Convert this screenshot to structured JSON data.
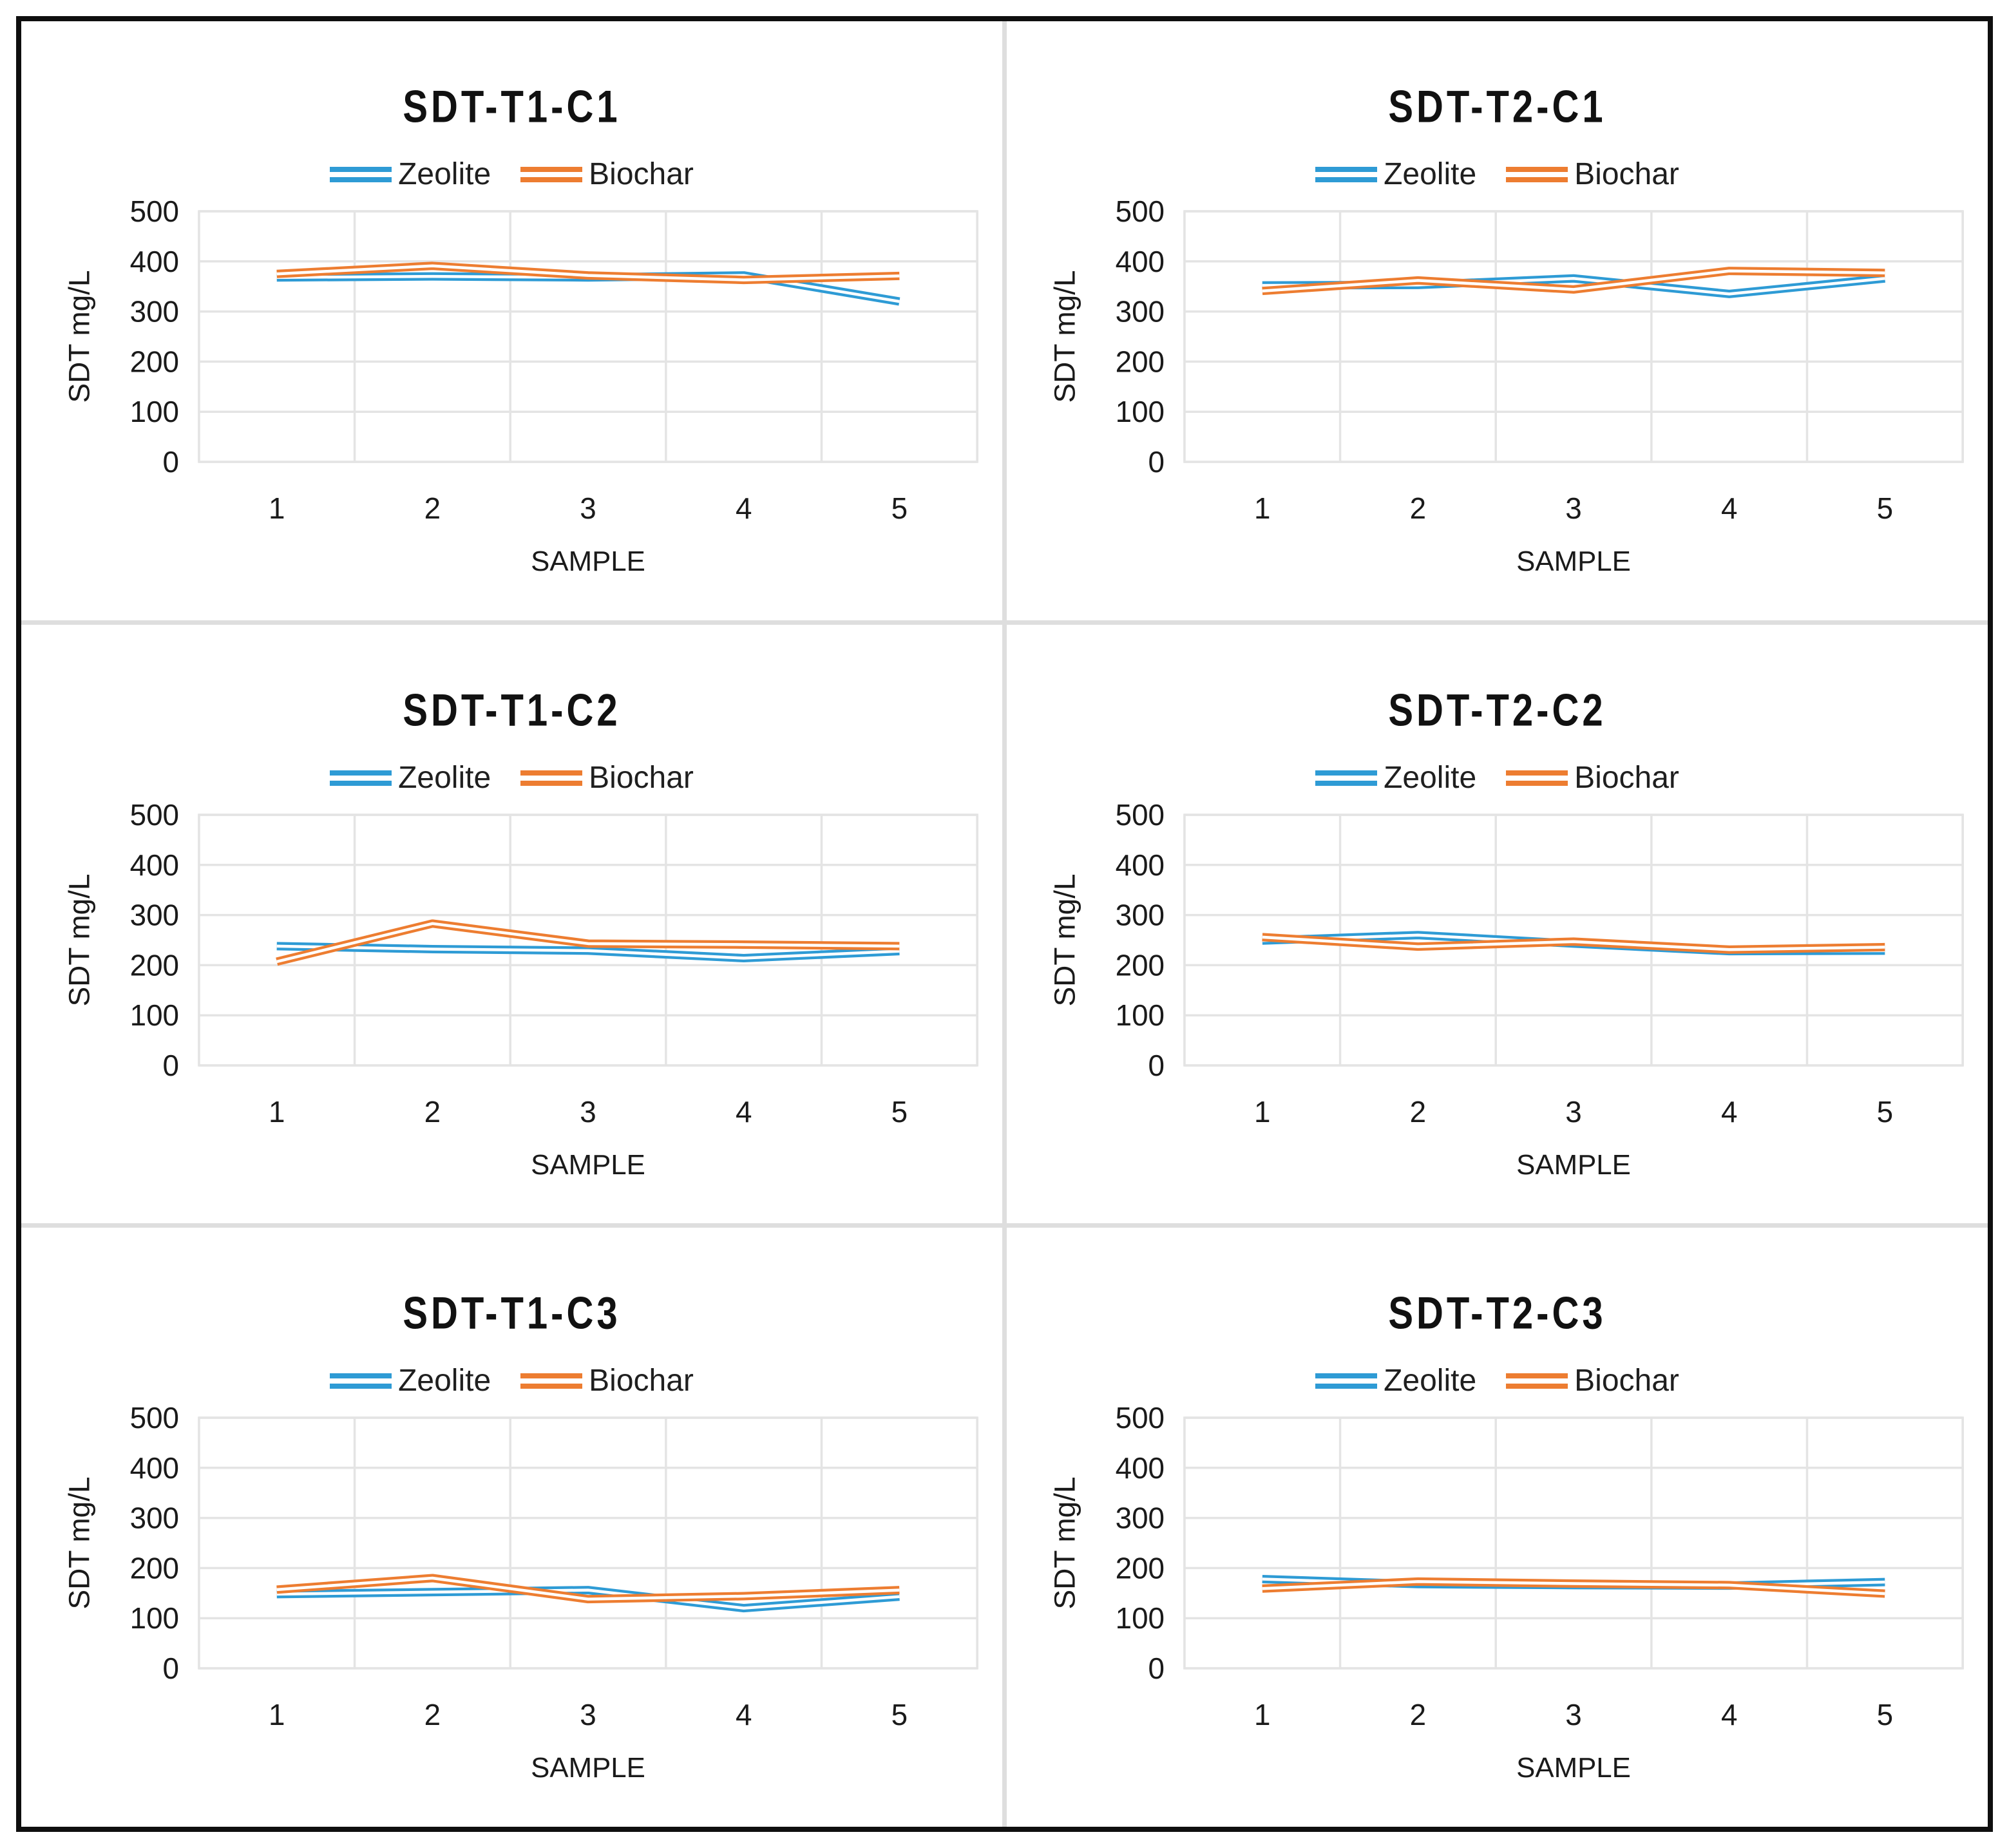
{
  "figure": {
    "xlabel": "SAMPLE",
    "ylabel": "SDT mg/L",
    "legend_entries": [
      "Zeolite",
      "Biochar"
    ]
  },
  "colors": {
    "zeolite_blue": "#2E9BD5",
    "biochar_orange": "#ED7D31",
    "gridline_gray": "#E4E4E4",
    "text_black": "#1A1A1A",
    "outer_border_black": "#0F0F0F",
    "panel_divider_gray": "#DEDEDE"
  },
  "chart_data": [
    {
      "type": "line",
      "title": "SDT-T1-C1",
      "categories": [
        "1",
        "2",
        "3",
        "4",
        "5"
      ],
      "xlabel": "SAMPLE",
      "ylabel": "SDT mg/L",
      "ylim": [
        0,
        500
      ],
      "yticks": [
        0,
        100,
        200,
        300,
        400,
        500
      ],
      "grid": true,
      "legend_position": "top",
      "series": [
        {
          "name": "Zeolite",
          "color": "#2E9BD5",
          "values": [
            368,
            370,
            368,
            372,
            320
          ]
        },
        {
          "name": "Biochar",
          "color": "#ED7D31",
          "values": [
            375,
            391,
            372,
            363,
            371
          ]
        }
      ]
    },
    {
      "type": "line",
      "title": "SDT-T2-C1",
      "categories": [
        "1",
        "2",
        "3",
        "4",
        "5"
      ],
      "xlabel": "SAMPLE",
      "ylabel": "SDT mg/L",
      "ylim": [
        0,
        500
      ],
      "yticks": [
        0,
        100,
        200,
        300,
        400,
        500
      ],
      "grid": true,
      "legend_position": "top",
      "series": [
        {
          "name": "Zeolite",
          "color": "#2E9BD5",
          "values": [
            352,
            353,
            366,
            335,
            366
          ]
        },
        {
          "name": "Biochar",
          "color": "#ED7D31",
          "values": [
            341,
            362,
            344,
            381,
            377
          ]
        }
      ]
    },
    {
      "type": "line",
      "title": "SDT-T1-C2",
      "categories": [
        "1",
        "2",
        "3",
        "4",
        "5"
      ],
      "xlabel": "SAMPLE",
      "ylabel": "SDT mg/L",
      "ylim": [
        0,
        500
      ],
      "yticks": [
        0,
        100,
        200,
        300,
        400,
        500
      ],
      "grid": true,
      "legend_position": "top",
      "series": [
        {
          "name": "Zeolite",
          "color": "#2E9BD5",
          "values": [
            238,
            232,
            229,
            214,
            228
          ]
        },
        {
          "name": "Biochar",
          "color": "#ED7D31",
          "values": [
            207,
            283,
            243,
            241,
            238
          ]
        }
      ]
    },
    {
      "type": "line",
      "title": "SDT-T2-C2",
      "categories": [
        "1",
        "2",
        "3",
        "4",
        "5"
      ],
      "xlabel": "SAMPLE",
      "ylabel": "SDT mg/L",
      "ylim": [
        0,
        500
      ],
      "yticks": [
        0,
        100,
        200,
        300,
        400,
        500
      ],
      "grid": true,
      "legend_position": "top",
      "series": [
        {
          "name": "Zeolite",
          "color": "#2E9BD5",
          "values": [
            249,
            260,
            243,
            228,
            229
          ]
        },
        {
          "name": "Biochar",
          "color": "#ED7D31",
          "values": [
            256,
            237,
            247,
            231,
            236
          ]
        }
      ]
    },
    {
      "type": "line",
      "title": "SDT-T1-C3",
      "categories": [
        "1",
        "2",
        "3",
        "4",
        "5"
      ],
      "xlabel": "SAMPLE",
      "ylabel": "SDT mg/L",
      "ylim": [
        0,
        500
      ],
      "yticks": [
        0,
        100,
        200,
        300,
        400,
        500
      ],
      "grid": true,
      "legend_position": "top",
      "series": [
        {
          "name": "Zeolite",
          "color": "#2E9BD5",
          "values": [
            148,
            152,
            156,
            120,
            143
          ]
        },
        {
          "name": "Biochar",
          "color": "#ED7D31",
          "values": [
            157,
            180,
            138,
            144,
            156
          ]
        }
      ]
    },
    {
      "type": "line",
      "title": "SDT-T2-C3",
      "categories": [
        "1",
        "2",
        "3",
        "4",
        "5"
      ],
      "xlabel": "SAMPLE",
      "ylabel": "SDT mg/L",
      "ylim": [
        0,
        500
      ],
      "yticks": [
        0,
        100,
        200,
        300,
        400,
        500
      ],
      "grid": true,
      "legend_position": "top",
      "series": [
        {
          "name": "Zeolite",
          "color": "#2E9BD5",
          "values": [
            178,
            168,
            166,
            165,
            172
          ]
        },
        {
          "name": "Biochar",
          "color": "#ED7D31",
          "values": [
            159,
            173,
            169,
            166,
            149
          ]
        }
      ]
    }
  ]
}
